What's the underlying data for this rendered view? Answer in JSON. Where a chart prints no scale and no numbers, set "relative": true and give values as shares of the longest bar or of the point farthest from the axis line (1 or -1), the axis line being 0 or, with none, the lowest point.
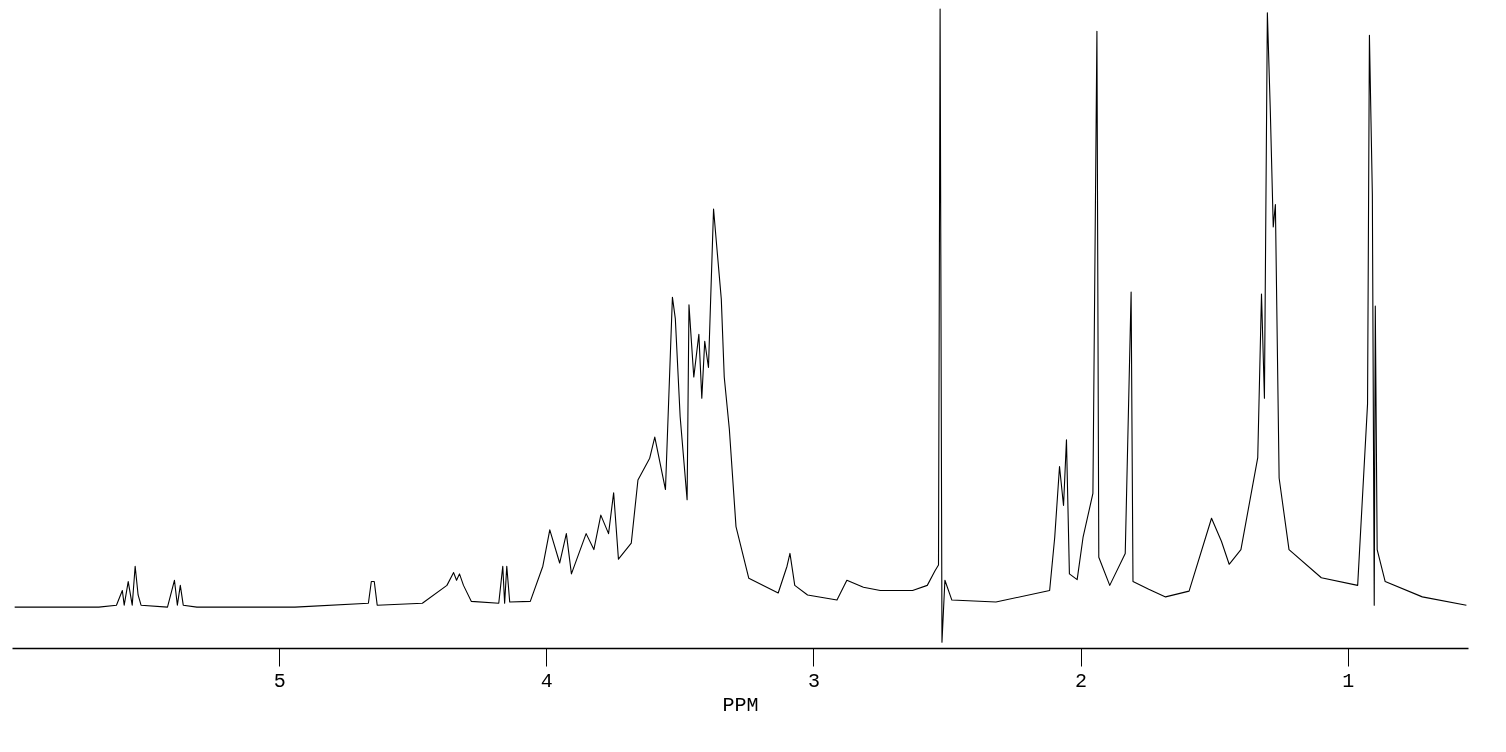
{
  "chart_data": {
    "type": "line",
    "xlabel": "PPM",
    "relative": true,
    "grid": false,
    "xlim": [
      6.0,
      0.55
    ],
    "xticks": [
      5,
      4,
      3,
      2,
      1
    ],
    "series": [
      {
        "color": "#000000",
        "x": [
          5.99,
          5.675,
          5.609,
          5.587,
          5.58,
          5.565,
          5.55,
          5.539,
          5.528,
          5.517,
          5.418,
          5.392,
          5.381,
          5.37,
          5.359,
          5.308,
          4.941,
          4.666,
          4.655,
          4.644,
          4.633,
          4.464,
          4.372,
          4.347,
          4.336,
          4.325,
          4.31,
          4.281,
          4.178,
          4.163,
          4.156,
          4.148,
          4.137,
          4.06,
          4.013,
          3.987,
          3.95,
          3.925,
          3.906,
          3.851,
          3.822,
          3.796,
          3.767,
          3.748,
          3.73,
          3.682,
          3.657,
          3.613,
          3.594,
          3.554,
          3.528,
          3.517,
          3.499,
          3.473,
          3.466,
          3.448,
          3.429,
          3.418,
          3.407,
          3.393,
          3.374,
          3.363,
          3.345,
          3.334,
          3.315,
          3.29,
          3.242,
          3.132,
          3.099,
          3.088,
          3.07,
          3.022,
          2.912,
          2.875,
          2.813,
          2.75,
          2.629,
          2.574,
          2.545,
          2.532,
          2.526,
          2.519,
          2.508,
          2.482,
          2.317,
          2.116,
          2.097,
          2.079,
          2.064,
          2.053,
          2.042,
          2.013,
          1.991,
          1.954,
          1.939,
          1.932,
          1.891,
          1.833,
          1.811,
          1.804,
          1.745,
          1.682,
          1.594,
          1.51,
          1.473,
          1.444,
          1.4,
          1.337,
          1.323,
          1.312,
          1.301,
          1.29,
          1.279,
          1.271,
          1.257,
          1.22,
          1.099,
          0.963,
          0.926,
          0.919,
          0.908,
          0.901,
          0.897,
          0.89,
          0.86,
          0.721,
          0.556
        ],
        "values": [
          0.064,
          0.064,
          0.067,
          0.09,
          0.067,
          0.104,
          0.067,
          0.128,
          0.083,
          0.067,
          0.064,
          0.106,
          0.067,
          0.098,
          0.067,
          0.064,
          0.064,
          0.07,
          0.104,
          0.104,
          0.067,
          0.07,
          0.098,
          0.118,
          0.106,
          0.116,
          0.098,
          0.073,
          0.07,
          0.128,
          0.07,
          0.128,
          0.072,
          0.073,
          0.128,
          0.185,
          0.133,
          0.179,
          0.116,
          0.179,
          0.154,
          0.208,
          0.179,
          0.243,
          0.139,
          0.164,
          0.263,
          0.297,
          0.33,
          0.248,
          0.549,
          0.515,
          0.362,
          0.232,
          0.537,
          0.424,
          0.491,
          0.391,
          0.48,
          0.439,
          0.687,
          0.633,
          0.546,
          0.424,
          0.343,
          0.19,
          0.109,
          0.086,
          0.128,
          0.148,
          0.098,
          0.083,
          0.075,
          0.106,
          0.095,
          0.09,
          0.09,
          0.098,
          0.121,
          0.13,
          1.0,
          0.009,
          0.106,
          0.075,
          0.072,
          0.09,
          0.173,
          0.284,
          0.223,
          0.326,
          0.116,
          0.107,
          0.173,
          0.242,
          0.965,
          0.142,
          0.098,
          0.148,
          0.557,
          0.104,
          0.092,
          0.08,
          0.089,
          0.203,
          0.167,
          0.131,
          0.154,
          0.298,
          0.554,
          0.391,
          0.994,
          0.841,
          0.659,
          0.694,
          0.266,
          0.154,
          0.11,
          0.098,
          0.382,
          0.959,
          0.709,
          0.067,
          0.535,
          0.154,
          0.104,
          0.08,
          0.067
        ]
      }
    ]
  }
}
